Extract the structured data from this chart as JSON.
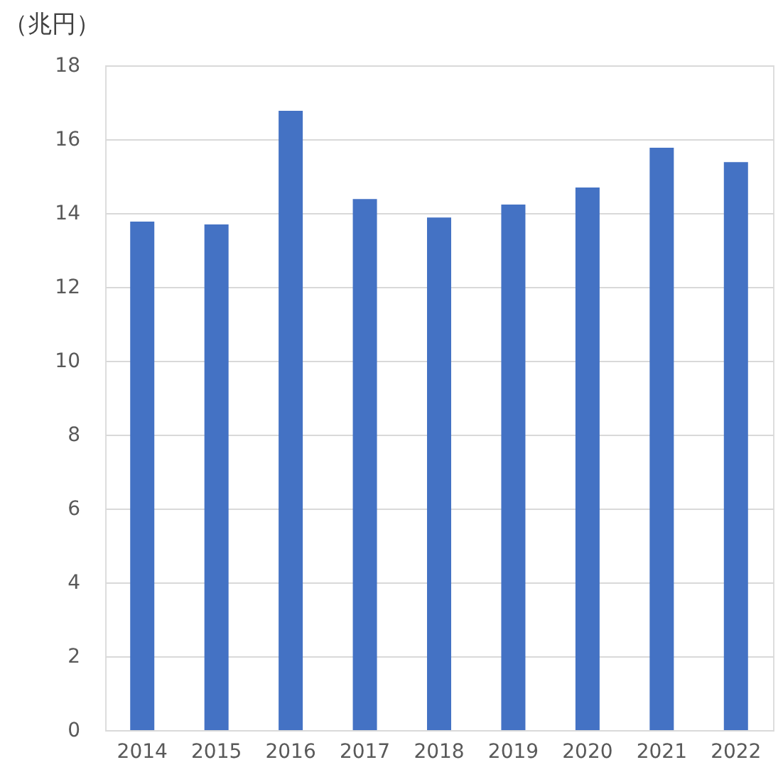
{
  "chart_data": {
    "type": "bar",
    "ylabel": "（兆円）",
    "categories": [
      "2014",
      "2015",
      "2016",
      "2017",
      "2018",
      "2019",
      "2020",
      "2021",
      "2022"
    ],
    "values": [
      13.77,
      13.69,
      16.77,
      14.38,
      13.88,
      14.23,
      14.69,
      15.77,
      15.38
    ],
    "color": "#4472c4",
    "ylim": [
      0,
      18
    ],
    "yticks": [
      0,
      2,
      4,
      6,
      8,
      10,
      12,
      14,
      16,
      18
    ],
    "grid": "y"
  }
}
